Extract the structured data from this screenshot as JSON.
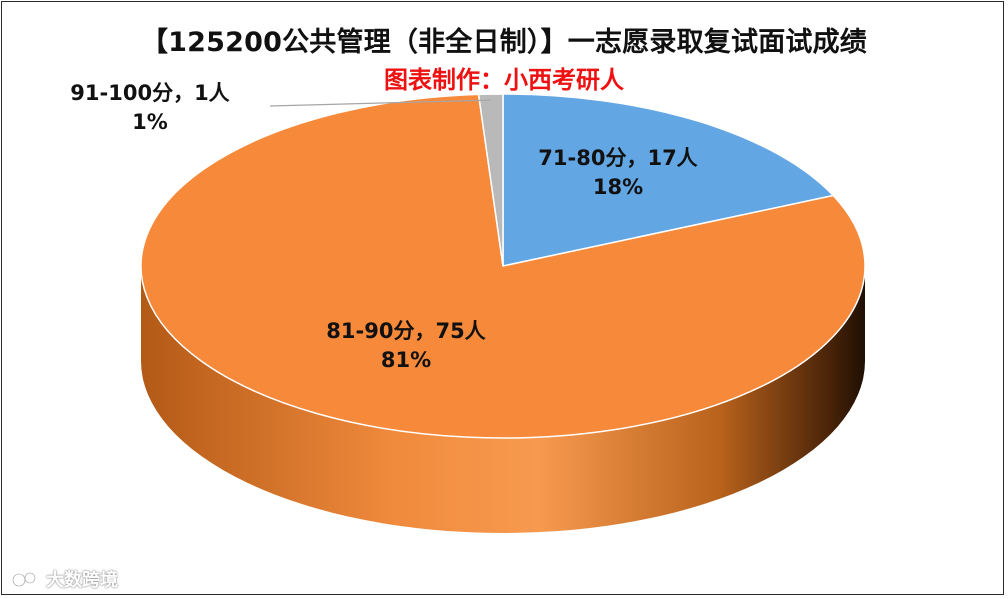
{
  "chart_data": {
    "type": "pie",
    "title": "【125200公共管理（非全日制）】一志愿录取复试面试成绩",
    "subtitle": "图表制作：小西考研人",
    "slices": [
      {
        "name": "71-80分",
        "count": 17,
        "percent": 18,
        "color": "#63a6e4",
        "label_line1": "71-80分，17人",
        "label_line2": "18%"
      },
      {
        "name": "81-90分",
        "count": 75,
        "percent": 81,
        "color": "#f6893a",
        "label_line1": "81-90分，75人",
        "label_line2": "81%"
      },
      {
        "name": "91-100分",
        "count": 1,
        "percent": 1,
        "color": "#b9b9b9",
        "label_line1": "91-100分，1人",
        "label_line2": "1%"
      }
    ]
  },
  "watermark": "大数跨境"
}
